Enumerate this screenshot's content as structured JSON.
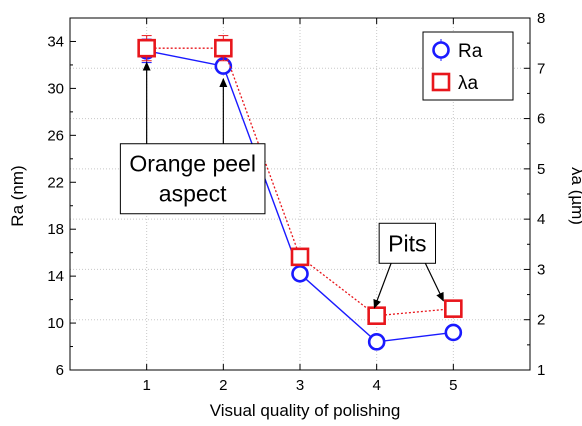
{
  "chart_data": {
    "type": "line",
    "title": "",
    "xlabel": "Visual quality of polishing",
    "ylabel": "Ra (nm)",
    "y2label": "λa (µm)",
    "x": [
      1,
      2,
      3,
      4,
      5
    ],
    "xticks": [
      "1",
      "2",
      "3",
      "4",
      "5"
    ],
    "xlim": [
      0,
      6
    ],
    "ylim": [
      6,
      36
    ],
    "y2lim": [
      1,
      8
    ],
    "yticks": [
      "6",
      "10",
      "14",
      "18",
      "22",
      "26",
      "30",
      "34"
    ],
    "y2ticks": [
      "1",
      "2",
      "3",
      "4",
      "5",
      "6",
      "7",
      "8"
    ],
    "grid": true,
    "legend_position": "top-right",
    "series": [
      {
        "name": "Ra",
        "axis": "left",
        "color": "#1a1aff",
        "line_style": "solid",
        "marker": "circle",
        "values": [
          33.2,
          31.9,
          14.2,
          8.4,
          9.2
        ],
        "error_low": [
          32.2,
          null,
          null,
          null,
          null
        ],
        "error_high": [
          34.2,
          null,
          null,
          null,
          null
        ]
      },
      {
        "name": "λa",
        "axis": "right",
        "color": "#e8161c",
        "line_style": "dotted",
        "marker": "square",
        "values": [
          7.4,
          7.4,
          3.25,
          2.08,
          2.22
        ],
        "error_low": [
          7.15,
          7.15,
          null,
          null,
          null
        ],
        "error_high": [
          7.65,
          7.65,
          null,
          null,
          null
        ]
      }
    ],
    "annotations": [
      {
        "lines": [
          "Orange peel",
          "aspect"
        ],
        "box_center_x": 1.6,
        "box_center_y": 22.3,
        "arrows": [
          {
            "from_x": 1.0,
            "from_y": 25.0,
            "to_x": 1.0,
            "to_y": 32.2
          },
          {
            "from_x": 2.0,
            "from_y": 25.0,
            "to_x": 2.0,
            "to_y": 30.8
          }
        ]
      },
      {
        "lines": [
          "Pits"
        ],
        "box_center_x": 4.4,
        "box_center_y": 16.8,
        "arrows": [
          {
            "from_x": 4.2,
            "from_y": 15.3,
            "to_x": 3.97,
            "to_y": 11.3
          },
          {
            "from_x": 4.62,
            "from_y": 15.3,
            "to_x": 4.87,
            "to_y": 11.9
          }
        ]
      }
    ]
  }
}
